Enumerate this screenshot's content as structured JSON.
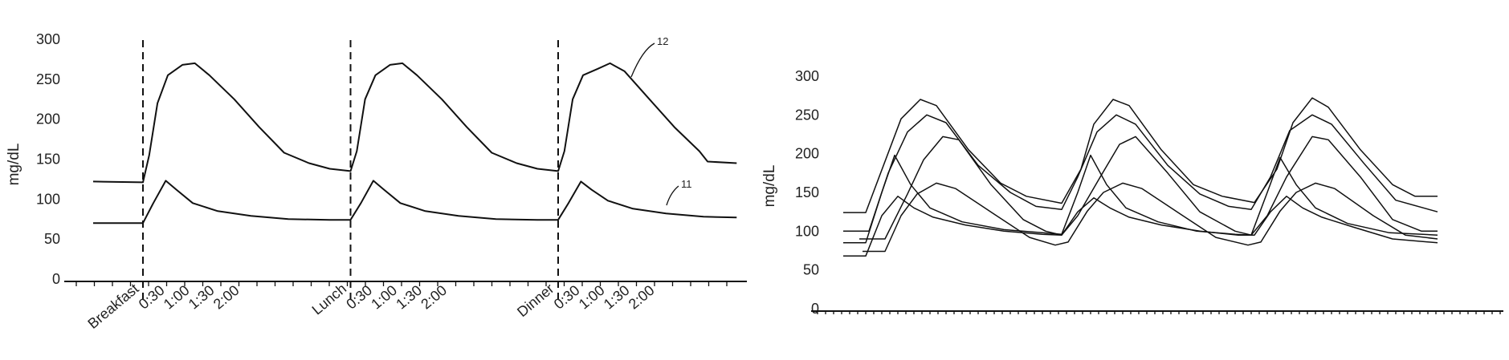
{
  "chart_data": [
    {
      "type": "line",
      "ylabel": "mg/dL",
      "ylim": [
        0,
        300
      ],
      "yticks": [
        "0",
        "50",
        "100",
        "150",
        "200",
        "250",
        "300"
      ],
      "x_tick_labels": [
        "Breakfast",
        "0:30",
        "1:00",
        "1:30",
        "2:00",
        "Lunch",
        "0:30",
        "1:00",
        "1:30",
        "2:00",
        "Dinner",
        "0:30",
        "1:00",
        "1:30",
        "2:00"
      ],
      "meals": [
        "Breakfast",
        "Lunch",
        "Dinner"
      ],
      "series": [
        {
          "ref": "12",
          "values": [
            [
              -1.2,
              122
            ],
            [
              0,
              121
            ],
            [
              0.15,
              155
            ],
            [
              0.35,
              220
            ],
            [
              0.6,
              255
            ],
            [
              0.95,
              268
            ],
            [
              1.25,
              270
            ],
            [
              1.6,
              255
            ],
            [
              2.2,
              225
            ],
            [
              2.8,
              190
            ],
            [
              3.4,
              158
            ],
            [
              4.0,
              145
            ],
            [
              4.5,
              138
            ],
            [
              5.0,
              135
            ],
            [
              5.15,
              160
            ],
            [
              5.35,
              225
            ],
            [
              5.6,
              255
            ],
            [
              5.95,
              268
            ],
            [
              6.25,
              270
            ],
            [
              6.6,
              255
            ],
            [
              7.2,
              225
            ],
            [
              7.8,
              190
            ],
            [
              8.4,
              158
            ],
            [
              9.0,
              145
            ],
            [
              9.5,
              138
            ],
            [
              10.0,
              135
            ],
            [
              10.15,
              160
            ],
            [
              10.35,
              225
            ],
            [
              10.6,
              255
            ],
            [
              10.95,
              263
            ],
            [
              11.25,
              270
            ],
            [
              11.6,
              260
            ],
            [
              12.2,
              225
            ],
            [
              12.8,
              190
            ],
            [
              13.4,
              160
            ],
            [
              13.6,
              147
            ],
            [
              14.3,
              145
            ]
          ]
        },
        {
          "ref": "11",
          "values": [
            [
              -1.2,
              70
            ],
            [
              0,
              70
            ],
            [
              0.25,
              95
            ],
            [
              0.55,
              123
            ],
            [
              0.8,
              112
            ],
            [
              1.2,
              95
            ],
            [
              1.8,
              85
            ],
            [
              2.6,
              79
            ],
            [
              3.5,
              75
            ],
            [
              4.5,
              74
            ],
            [
              5.0,
              74
            ],
            [
              5.25,
              95
            ],
            [
              5.55,
              123
            ],
            [
              5.8,
              112
            ],
            [
              6.2,
              95
            ],
            [
              6.8,
              85
            ],
            [
              7.6,
              79
            ],
            [
              8.5,
              75
            ],
            [
              9.5,
              74
            ],
            [
              10.0,
              74
            ],
            [
              10.25,
              95
            ],
            [
              10.55,
              122
            ],
            [
              10.8,
              112
            ],
            [
              11.2,
              98
            ],
            [
              11.8,
              88
            ],
            [
              12.6,
              82
            ],
            [
              13.5,
              78
            ],
            [
              14.3,
              77
            ]
          ]
        }
      ]
    },
    {
      "type": "line",
      "ylabel": "mg/dL",
      "ylim": [
        0,
        300
      ],
      "yticks": [
        "0",
        "50",
        "100",
        "150",
        "200",
        "250",
        "300"
      ],
      "series": [
        {
          "values": [
            [
              0,
              124
            ],
            [
              0.7,
              124
            ],
            [
              1.3,
              190
            ],
            [
              1.8,
              245
            ],
            [
              2.4,
              270
            ],
            [
              2.9,
              262
            ],
            [
              3.9,
              205
            ],
            [
              4.9,
              162
            ],
            [
              5.7,
              145
            ],
            [
              6.8,
              136
            ],
            [
              7.4,
              180
            ],
            [
              7.8,
              238
            ],
            [
              8.4,
              270
            ],
            [
              8.9,
              262
            ],
            [
              9.9,
              205
            ],
            [
              10.9,
              160
            ],
            [
              11.8,
              145
            ],
            [
              12.8,
              137
            ],
            [
              13.5,
              180
            ],
            [
              14.0,
              240
            ],
            [
              14.6,
              272
            ],
            [
              15.1,
              260
            ],
            [
              16.1,
              205
            ],
            [
              17.1,
              160
            ],
            [
              17.8,
              145
            ],
            [
              18.5,
              145
            ]
          ]
        },
        {
          "values": [
            [
              0,
              100
            ],
            [
              0.8,
              100
            ],
            [
              1.4,
              175
            ],
            [
              2.0,
              228
            ],
            [
              2.6,
              250
            ],
            [
              3.2,
              240
            ],
            [
              4.2,
              185
            ],
            [
              5.2,
              150
            ],
            [
              6.0,
              132
            ],
            [
              6.8,
              128
            ],
            [
              7.3,
              170
            ],
            [
              7.9,
              228
            ],
            [
              8.5,
              250
            ],
            [
              9.1,
              238
            ],
            [
              10.1,
              185
            ],
            [
              11.1,
              148
            ],
            [
              12.0,
              132
            ],
            [
              12.7,
              128
            ],
            [
              13.3,
              170
            ],
            [
              13.9,
              230
            ],
            [
              14.6,
              250
            ],
            [
              15.2,
              238
            ],
            [
              16.2,
              188
            ],
            [
              17.2,
              140
            ],
            [
              18.5,
              125
            ]
          ]
        },
        {
          "values": [
            [
              0.5,
              90
            ],
            [
              1.3,
              90
            ],
            [
              2.0,
              148
            ],
            [
              2.5,
              192
            ],
            [
              3.1,
              222
            ],
            [
              3.6,
              218
            ],
            [
              4.6,
              160
            ],
            [
              5.6,
              115
            ],
            [
              6.3,
              100
            ],
            [
              6.8,
              95
            ],
            [
              7.3,
              120
            ],
            [
              8.0,
              170
            ],
            [
              8.6,
              212
            ],
            [
              9.1,
              222
            ],
            [
              10.1,
              175
            ],
            [
              11.1,
              125
            ],
            [
              12.2,
              100
            ],
            [
              12.7,
              95
            ],
            [
              13.2,
              120
            ],
            [
              13.8,
              170
            ],
            [
              14.6,
              222
            ],
            [
              15.1,
              218
            ],
            [
              16.1,
              170
            ],
            [
              17.1,
              115
            ],
            [
              18.0,
              100
            ],
            [
              18.5,
              100
            ]
          ]
        },
        {
          "values": [
            [
              0,
              85
            ],
            [
              0.7,
              85
            ],
            [
              1.2,
              150
            ],
            [
              1.6,
              198
            ],
            [
              2.1,
              160
            ],
            [
              2.7,
              130
            ],
            [
              3.7,
              112
            ],
            [
              5.0,
              102
            ],
            [
              6.2,
              98
            ],
            [
              6.8,
              96
            ],
            [
              7.3,
              150
            ],
            [
              7.7,
              198
            ],
            [
              8.2,
              160
            ],
            [
              8.8,
              130
            ],
            [
              9.8,
              112
            ],
            [
              11.0,
              100
            ],
            [
              12.2,
              96
            ],
            [
              12.7,
              95
            ],
            [
              13.2,
              150
            ],
            [
              13.6,
              195
            ],
            [
              14.1,
              160
            ],
            [
              14.7,
              130
            ],
            [
              15.7,
              110
            ],
            [
              17.0,
              98
            ],
            [
              18.5,
              95
            ]
          ]
        },
        {
          "values": [
            [
              0.6,
              74
            ],
            [
              1.3,
              74
            ],
            [
              1.8,
              120
            ],
            [
              2.3,
              148
            ],
            [
              2.9,
              162
            ],
            [
              3.5,
              155
            ],
            [
              4.7,
              122
            ],
            [
              5.8,
              92
            ],
            [
              6.6,
              82
            ],
            [
              7.0,
              86
            ],
            [
              7.6,
              126
            ],
            [
              8.1,
              150
            ],
            [
              8.7,
              162
            ],
            [
              9.3,
              155
            ],
            [
              10.5,
              122
            ],
            [
              11.6,
              92
            ],
            [
              12.6,
              82
            ],
            [
              13.0,
              86
            ],
            [
              13.6,
              126
            ],
            [
              14.1,
              150
            ],
            [
              14.7,
              162
            ],
            [
              15.3,
              155
            ],
            [
              16.5,
              120
            ],
            [
              17.5,
              95
            ],
            [
              18.5,
              90
            ]
          ]
        },
        {
          "values": [
            [
              0,
              68
            ],
            [
              0.7,
              68
            ],
            [
              1.2,
              120
            ],
            [
              1.7,
              145
            ],
            [
              2.2,
              130
            ],
            [
              2.8,
              118
            ],
            [
              3.8,
              108
            ],
            [
              5.0,
              100
            ],
            [
              6.2,
              96
            ],
            [
              6.8,
              95
            ],
            [
              7.3,
              125
            ],
            [
              7.8,
              143
            ],
            [
              8.3,
              130
            ],
            [
              8.9,
              118
            ],
            [
              9.9,
              108
            ],
            [
              11.1,
              100
            ],
            [
              12.3,
              95
            ],
            [
              12.8,
              95
            ],
            [
              13.3,
              125
            ],
            [
              13.8,
              145
            ],
            [
              14.3,
              130
            ],
            [
              14.9,
              118
            ],
            [
              15.9,
              105
            ],
            [
              17.1,
              90
            ],
            [
              18.5,
              85
            ]
          ]
        }
      ]
    }
  ]
}
